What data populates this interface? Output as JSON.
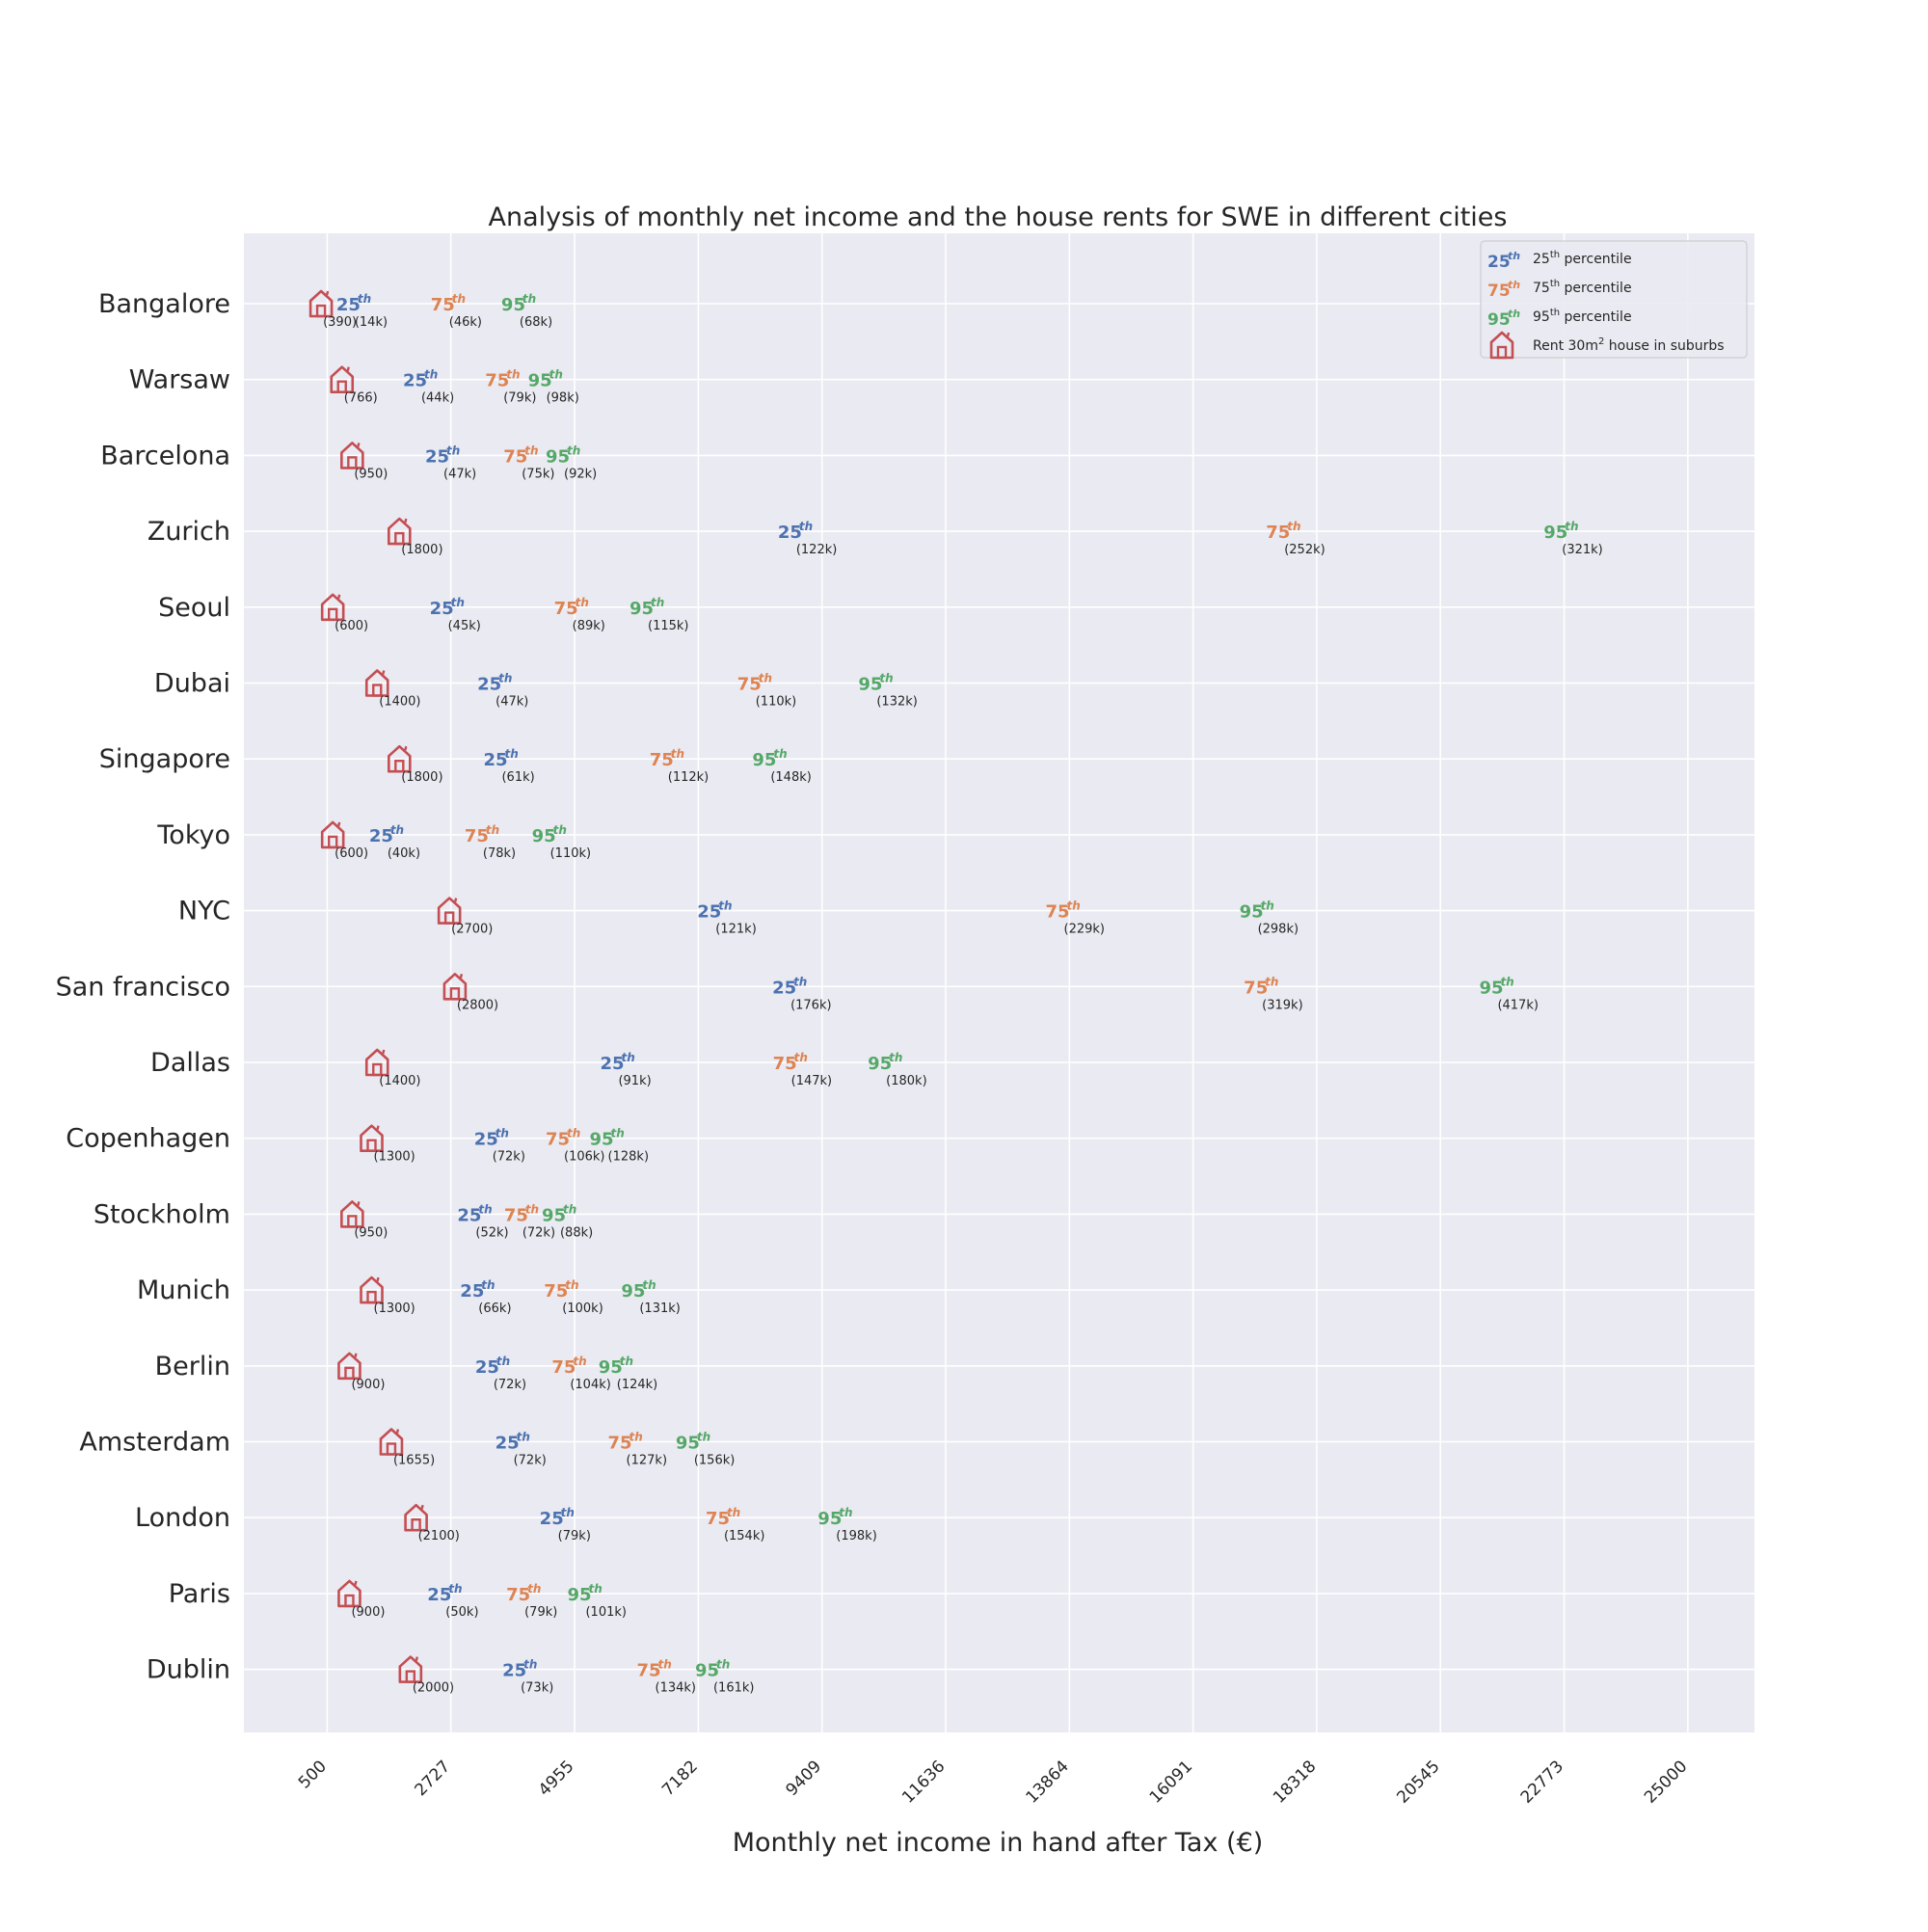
{
  "chart_data": {
    "type": "scatter",
    "title": "Analysis of monthly net income and the house rents for SWE in different cities",
    "xlabel": "Monthly net income in hand after Tax (€)",
    "ylabel": "",
    "xlim": [
      -1000,
      26200
    ],
    "x_ticks": [
      "500",
      "2727",
      "4955",
      "7182",
      "9409",
      "11636",
      "13864",
      "16091",
      "18318",
      "20545",
      "22773",
      "25000"
    ],
    "x_tick_values": [
      500,
      2727,
      4955,
      7182,
      9409,
      11636,
      13864,
      16091,
      18318,
      20545,
      22773,
      25000
    ],
    "grid": true,
    "legend_position": "top-right",
    "legend": [
      {
        "marker": "25",
        "sup": "th",
        "label": "percentile",
        "color": "#4c72b0"
      },
      {
        "marker": "75",
        "sup": "th",
        "label": "percentile",
        "color": "#dd8452"
      },
      {
        "marker": "95",
        "sup": "th",
        "label": "percentile",
        "color": "#55a868"
      },
      {
        "marker": "house",
        "label_prefix": "Rent 30m",
        "label_sup": "2",
        "label_suffix": " house in suburbs",
        "color": "#c44e52"
      }
    ],
    "colors": {
      "p25": "#4c72b0",
      "p75": "#dd8452",
      "p95": "#55a868",
      "rent": "#c44e52"
    },
    "cities": [
      {
        "name": "Bangalore",
        "rent": 390,
        "rent_label": "(390)",
        "p25": 1080,
        "p25_label": "(14k)",
        "p75": 2780,
        "p75_label": "(46k)",
        "p95": 4050,
        "p95_label": "(68k)"
      },
      {
        "name": "Warsaw",
        "rent": 766,
        "rent_label": "(766)",
        "p25": 2280,
        "p25_label": "(44k)",
        "p75": 3760,
        "p75_label": "(79k)",
        "p95": 4530,
        "p95_label": "(98k)"
      },
      {
        "name": "Barcelona",
        "rent": 950,
        "rent_label": "(950)",
        "p25": 2680,
        "p25_label": "(47k)",
        "p75": 4090,
        "p75_label": "(75k)",
        "p95": 4850,
        "p95_label": "(92k)"
      },
      {
        "name": "Zurich",
        "rent": 1800,
        "rent_label": "(1800)",
        "p25": 9030,
        "p25_label": "(122k)",
        "p75": 17820,
        "p75_label": "(252k)",
        "p95": 22820,
        "p95_label": "(321k)"
      },
      {
        "name": "Seoul",
        "rent": 600,
        "rent_label": "(600)",
        "p25": 2760,
        "p25_label": "(45k)",
        "p75": 5000,
        "p75_label": "(89k)",
        "p95": 6360,
        "p95_label": "(115k)"
      },
      {
        "name": "Dubai",
        "rent": 1400,
        "rent_label": "(1400)",
        "p25": 3620,
        "p25_label": "(47k)",
        "p75": 8300,
        "p75_label": "(110k)",
        "p95": 10480,
        "p95_label": "(132k)"
      },
      {
        "name": "Singapore",
        "rent": 1800,
        "rent_label": "(1800)",
        "p25": 3730,
        "p25_label": "(61k)",
        "p75": 6720,
        "p75_label": "(112k)",
        "p95": 8570,
        "p95_label": "(148k)"
      },
      {
        "name": "Tokyo",
        "rent": 600,
        "rent_label": "(600)",
        "p25": 1670,
        "p25_label": "(40k)",
        "p75": 3390,
        "p75_label": "(78k)",
        "p95": 4600,
        "p95_label": "(110k)"
      },
      {
        "name": "NYC",
        "rent": 2700,
        "rent_label": "(2700)",
        "p25": 7580,
        "p25_label": "(121k)",
        "p75": 13850,
        "p75_label": "(229k)",
        "p95": 17340,
        "p95_label": "(298k)"
      },
      {
        "name": "San francisco",
        "rent": 2800,
        "rent_label": "(2800)",
        "p25": 8930,
        "p25_label": "(176k)",
        "p75": 17420,
        "p75_label": "(319k)",
        "p95": 21660,
        "p95_label": "(417k)"
      },
      {
        "name": "Dallas",
        "rent": 1400,
        "rent_label": "(1400)",
        "p25": 5830,
        "p25_label": "(91k)",
        "p75": 8940,
        "p75_label": "(147k)",
        "p95": 10650,
        "p95_label": "(180k)"
      },
      {
        "name": "Copenhagen",
        "rent": 1300,
        "rent_label": "(1300)",
        "p25": 3560,
        "p25_label": "(72k)",
        "p75": 4850,
        "p75_label": "(106k)",
        "p95": 5640,
        "p95_label": "(128k)"
      },
      {
        "name": "Stockholm",
        "rent": 950,
        "rent_label": "(950)",
        "p25": 3260,
        "p25_label": "(52k)",
        "p75": 4100,
        "p75_label": "(72k)",
        "p95": 4780,
        "p95_label": "(88k)"
      },
      {
        "name": "Munich",
        "rent": 1300,
        "rent_label": "(1300)",
        "p25": 3310,
        "p25_label": "(66k)",
        "p75": 4820,
        "p75_label": "(100k)",
        "p95": 6210,
        "p95_label": "(131k)"
      },
      {
        "name": "Berlin",
        "rent": 900,
        "rent_label": "(900)",
        "p25": 3580,
        "p25_label": "(72k)",
        "p75": 4960,
        "p75_label": "(104k)",
        "p95": 5800,
        "p95_label": "(124k)"
      },
      {
        "name": "Amsterdam",
        "rent": 1655,
        "rent_label": "(1655)",
        "p25": 3940,
        "p25_label": "(72k)",
        "p75": 5970,
        "p75_label": "(127k)",
        "p95": 7190,
        "p95_label": "(156k)"
      },
      {
        "name": "London",
        "rent": 2100,
        "rent_label": "(2100)",
        "p25": 4740,
        "p25_label": "(79k)",
        "p75": 7730,
        "p75_label": "(154k)",
        "p95": 9750,
        "p95_label": "(198k)"
      },
      {
        "name": "Paris",
        "rent": 900,
        "rent_label": "(900)",
        "p25": 2720,
        "p25_label": "(50k)",
        "p75": 4140,
        "p75_label": "(79k)",
        "p95": 5240,
        "p95_label": "(101k)"
      },
      {
        "name": "Dublin",
        "rent": 2000,
        "rent_label": "(2000)",
        "p25": 4070,
        "p25_label": "(73k)",
        "p75": 6490,
        "p75_label": "(134k)",
        "p95": 7540,
        "p95_label": "(161k)"
      }
    ]
  }
}
